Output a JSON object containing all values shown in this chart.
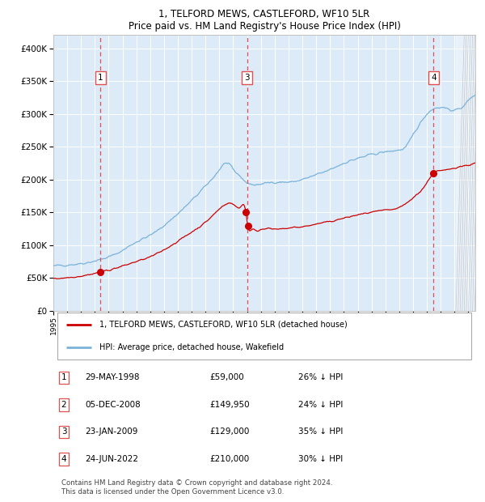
{
  "title1": "1, TELFORD MEWS, CASTLEFORD, WF10 5LR",
  "title2": "Price paid vs. HM Land Registry's House Price Index (HPI)",
  "ylabel_ticks": [
    "£0",
    "£50K",
    "£100K",
    "£150K",
    "£200K",
    "£250K",
    "£300K",
    "£350K",
    "£400K"
  ],
  "ytick_values": [
    0,
    50000,
    100000,
    150000,
    200000,
    250000,
    300000,
    350000,
    400000
  ],
  "ylim": [
    0,
    420000
  ],
  "xlim_start": 1995.0,
  "xlim_end": 2025.5,
  "sales": [
    {
      "label": "1",
      "date_str": "29-MAY-1998",
      "year": 1998.41,
      "price": 59000,
      "pct": "26%",
      "x_line": 1998.41
    },
    {
      "label": "2",
      "date_str": "05-DEC-2008",
      "year": 2008.92,
      "price": 149950,
      "pct": "24%",
      "x_line": 2009.0
    },
    {
      "label": "3",
      "date_str": "23-JAN-2009",
      "year": 2009.06,
      "price": 129000,
      "pct": "35%",
      "x_line": 2009.0
    },
    {
      "label": "4",
      "date_str": "24-JUN-2022",
      "year": 2022.48,
      "price": 210000,
      "pct": "30%",
      "x_line": 2022.48
    }
  ],
  "vlines": [
    1998.41,
    2009.0,
    2022.48
  ],
  "hpi_color": "#7ab3d9",
  "price_color": "#cc0000",
  "vline_color": "#e05050",
  "plot_bg": "#ddeaf7",
  "grid_color": "#ffffff",
  "legend_label_red": "1, TELFORD MEWS, CASTLEFORD, WF10 5LR (detached house)",
  "legend_label_blue": "HPI: Average price, detached house, Wakefield",
  "footer": "Contains HM Land Registry data © Crown copyright and database right 2024.\nThis data is licensed under the Open Government Licence v3.0.",
  "table_rows": [
    [
      "1",
      "29-MAY-1998",
      "£59,000",
      "26% ↓ HPI"
    ],
    [
      "2",
      "05-DEC-2008",
      "£149,950",
      "24% ↓ HPI"
    ],
    [
      "3",
      "23-JAN-2009",
      "£129,000",
      "35% ↓ HPI"
    ],
    [
      "4",
      "24-JUN-2022",
      "£210,000",
      "30% ↓ HPI"
    ]
  ],
  "numbered_labels": [
    {
      "label": "1",
      "x": 1998.41
    },
    {
      "label": "3",
      "x": 2009.0
    },
    {
      "label": "4",
      "x": 2022.48
    }
  ]
}
